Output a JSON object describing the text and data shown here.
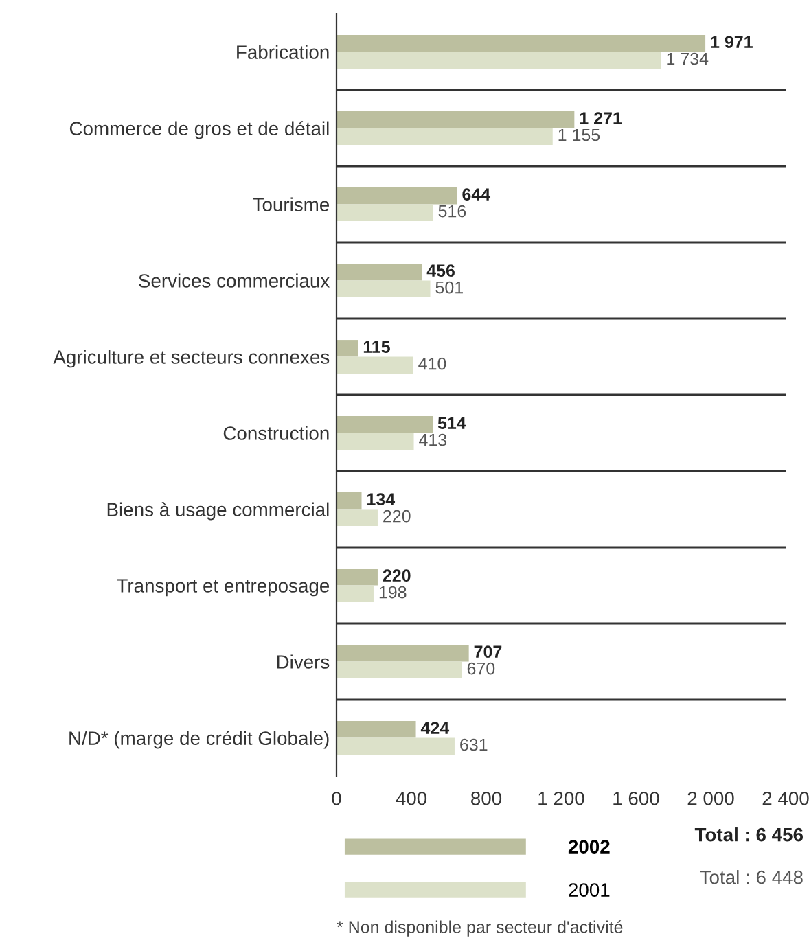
{
  "chart_data": {
    "type": "bar",
    "orientation": "horizontal",
    "categories": [
      "Fabrication",
      "Commerce de gros et de détail",
      "Tourisme",
      "Services commerciaux",
      "Agriculture et secteurs connexes",
      "Construction",
      "Biens à usage commercial",
      "Transport et entreposage",
      "Divers",
      "N/D* (marge de crédit Globale)"
    ],
    "series": [
      {
        "name": "2002",
        "color": "#bcbf9f",
        "values": [
          1971,
          1271,
          644,
          456,
          115,
          514,
          134,
          220,
          707,
          424
        ],
        "value_labels": [
          "1 971",
          "1 271",
          "644",
          "456",
          "115",
          "514",
          "134",
          "220",
          "707",
          "424"
        ]
      },
      {
        "name": "2001",
        "color": "#dce1c9",
        "values": [
          1734,
          1155,
          516,
          501,
          410,
          413,
          220,
          198,
          670,
          631
        ],
        "value_labels": [
          "1 734",
          "1 155",
          "516",
          "501",
          "410",
          "413",
          "220",
          "198",
          "670",
          "631"
        ]
      }
    ],
    "xlim": [
      0,
      2400
    ],
    "xticks": [
      0,
      {
        "value": 400,
        "label": "400"
      },
      {
        "value": 800,
        "label": "800"
      },
      {
        "value": 1200,
        "label": "1 200"
      },
      {
        "value": 1600,
        "label": "1 600"
      },
      {
        "value": 2000,
        "label": "2 000"
      },
      {
        "value": 2400,
        "label": "2 400"
      }
    ],
    "grid": "y",
    "legend": "bottom",
    "annotations": [
      "Total : 6 456",
      "Total : 6 448",
      "* Non disponible par secteur d'activité"
    ]
  }
}
